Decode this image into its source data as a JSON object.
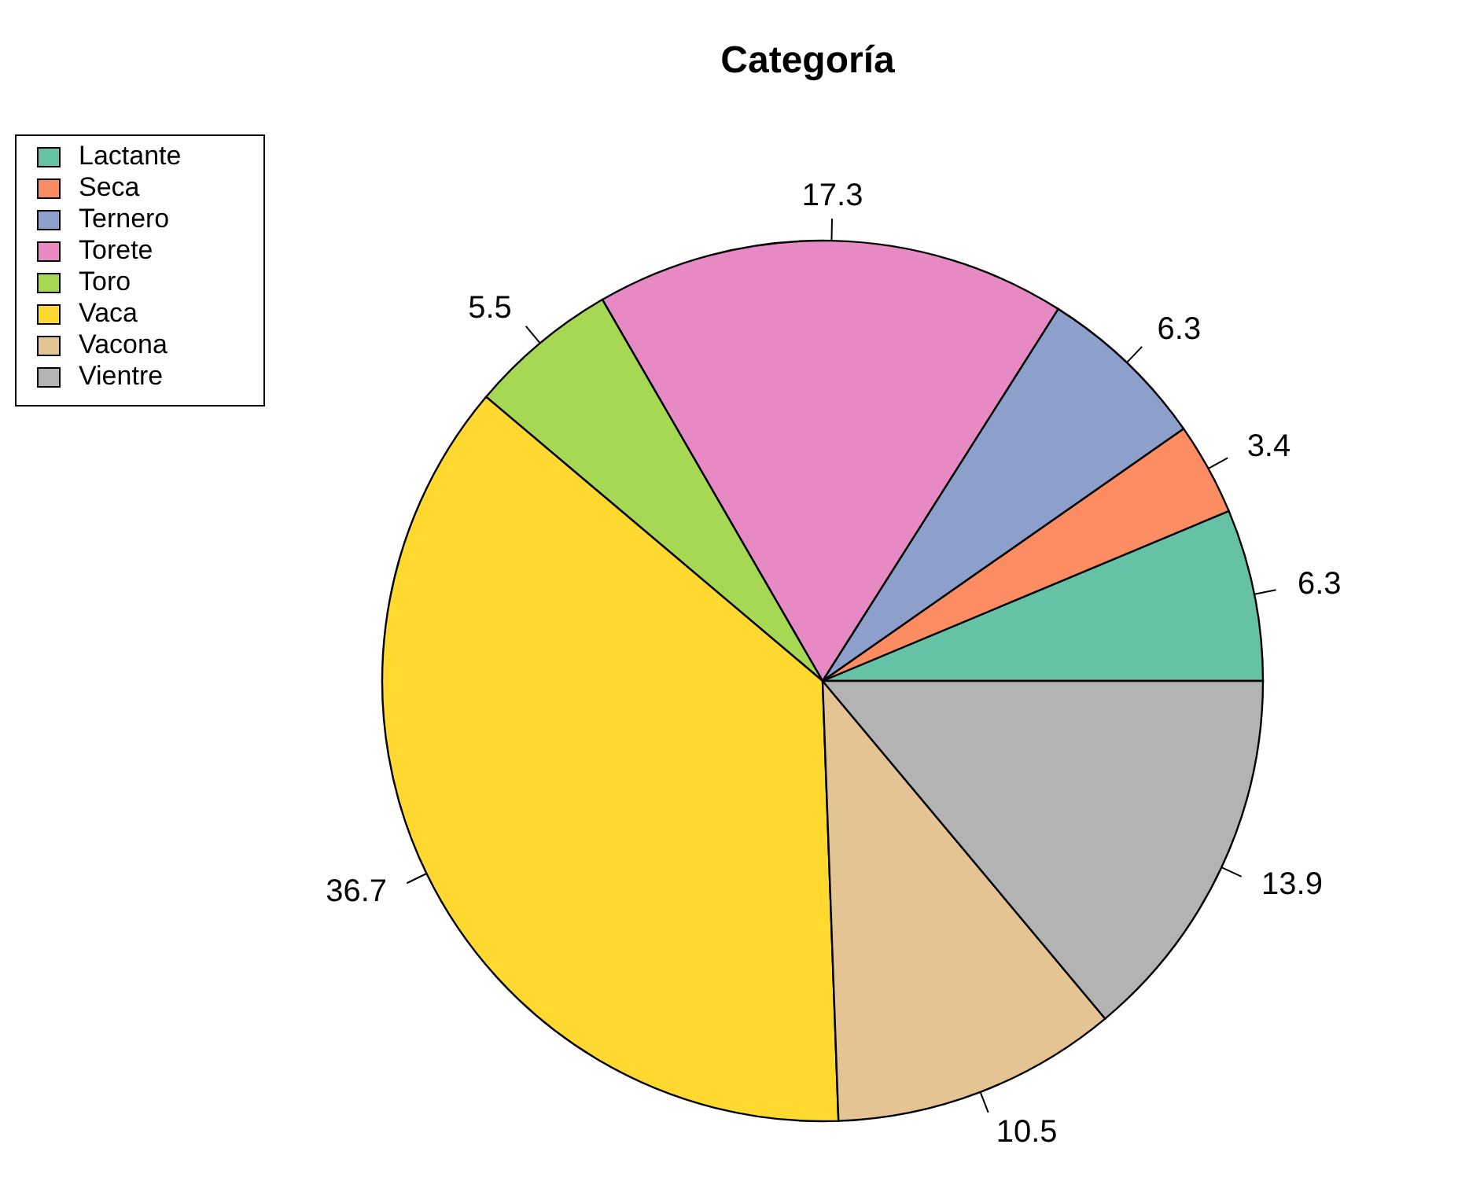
{
  "chart_data": {
    "type": "pie",
    "title": "Categoría",
    "categories": [
      "Lactante",
      "Seca",
      "Ternero",
      "Torete",
      "Toro",
      "Vaca",
      "Vacona",
      "Vientre"
    ],
    "values": [
      6.3,
      3.4,
      6.3,
      17.3,
      5.5,
      36.7,
      10.5,
      13.9
    ],
    "colors": [
      "#66c2a5",
      "#fc8d62",
      "#8da0cb",
      "#e78ac3",
      "#a6d854",
      "#ffd92f",
      "#e5c494",
      "#b3b3b3"
    ],
    "data_labels": true,
    "legend": "top left"
  }
}
